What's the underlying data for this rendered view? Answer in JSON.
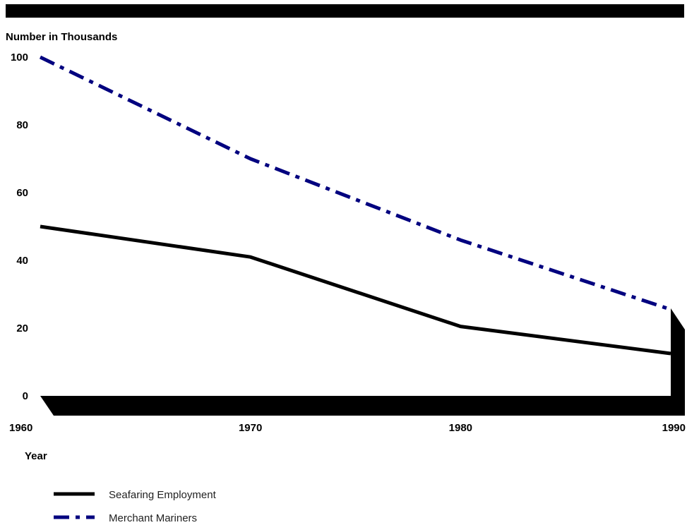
{
  "chart_data": {
    "type": "line",
    "title": "",
    "ylabel": "Number in Thousands",
    "xlabel": "Year",
    "x": [
      1960,
      1970,
      1980,
      1990
    ],
    "x_ticks": [
      "1960",
      "1970",
      "1980",
      "1990"
    ],
    "y_ticks": [
      "0",
      "20",
      "40",
      "60",
      "80",
      "100"
    ],
    "ylim": [
      0,
      100
    ],
    "xlim": [
      1960,
      1990
    ],
    "grid": false,
    "legend_position": "bottom-left",
    "series": [
      {
        "name": "Seafaring Employment",
        "values": [
          50,
          41,
          20.5,
          12.5
        ],
        "color": "#000000",
        "dash": "solid"
      },
      {
        "name": "Merchant Mariners",
        "values": [
          100,
          70,
          46,
          25.5
        ],
        "color": "#00007f",
        "dash": "dash-dot"
      }
    ]
  }
}
